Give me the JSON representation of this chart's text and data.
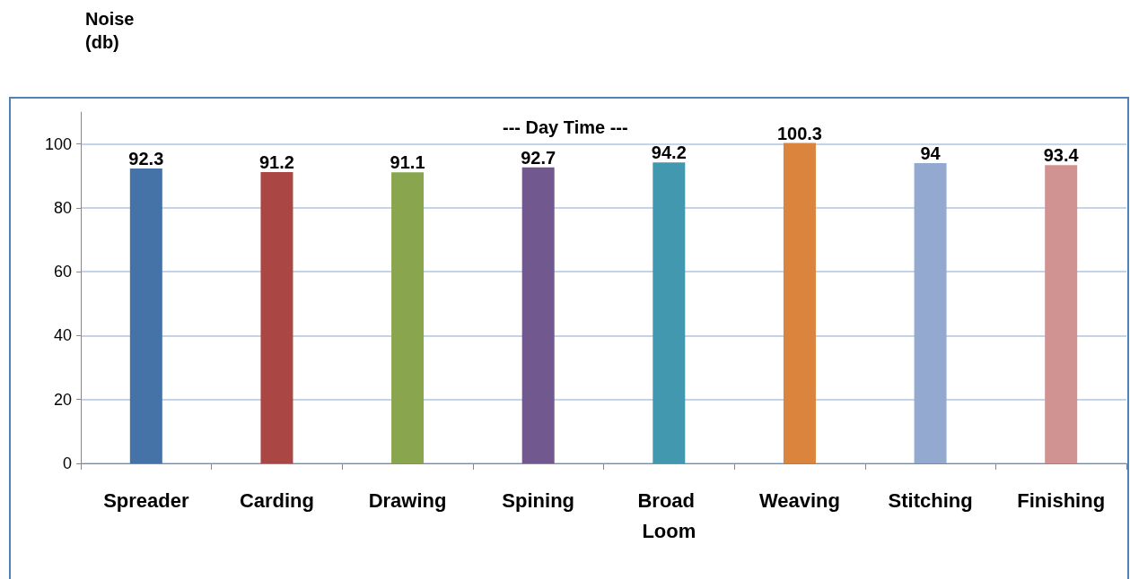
{
  "chart_data": {
    "type": "bar",
    "ylabel": "Noise\n(db)",
    "annotations": [
      "--- Day Time ---"
    ],
    "categories": [
      "Spreader",
      "Carding",
      "Drawing",
      "Spining",
      "Broad Loom",
      "Weaving",
      "Stitching",
      "Finishing"
    ],
    "values": [
      92.3,
      91.2,
      91.1,
      92.7,
      94.2,
      100.3,
      94,
      93.4
    ],
    "colors": [
      "#4572a7",
      "#aa4643",
      "#89a54e",
      "#71588f",
      "#4198af",
      "#db843d",
      "#93a9cf",
      "#d19392"
    ],
    "ylim": [
      0,
      110
    ],
    "yticks": [
      0,
      20,
      40,
      60,
      80,
      100
    ],
    "grid": "y",
    "data_labels": true
  }
}
